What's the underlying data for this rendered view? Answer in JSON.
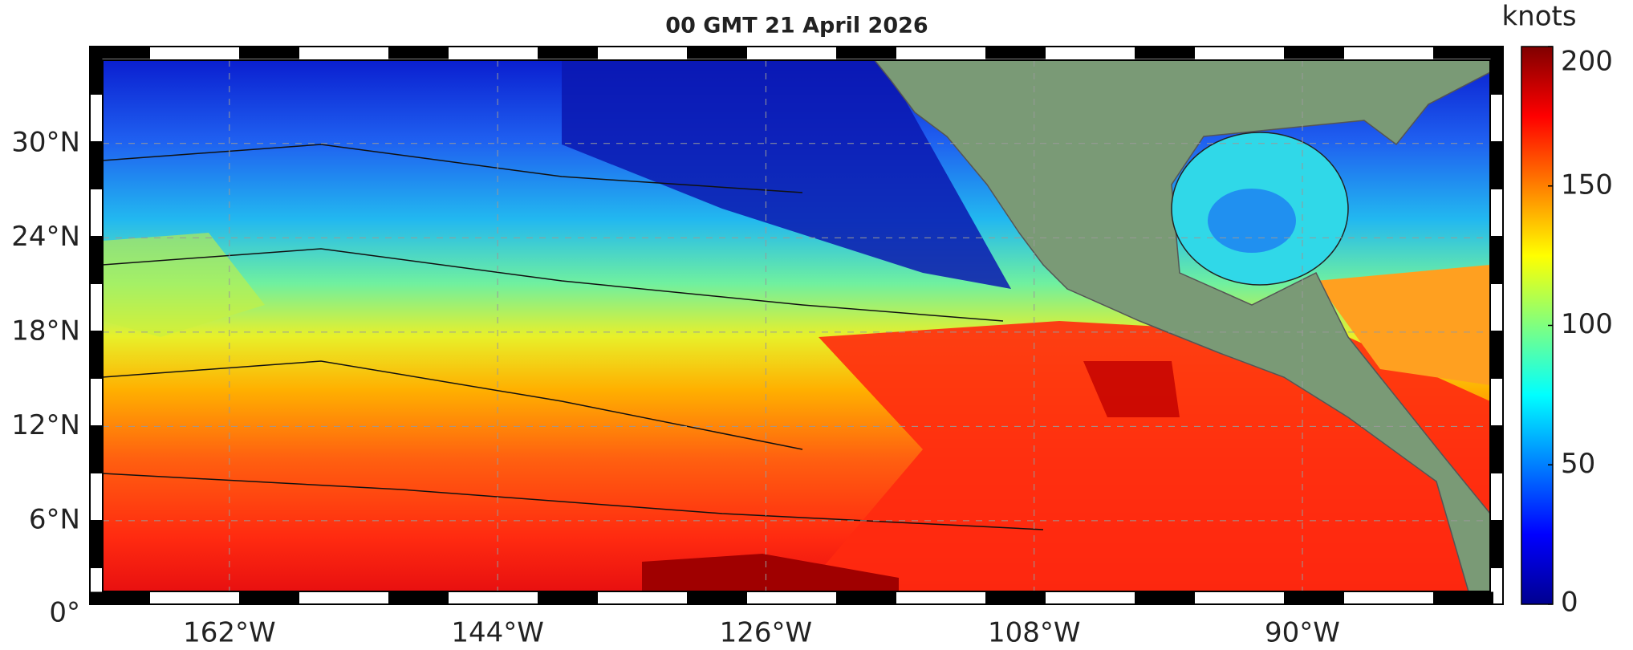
{
  "title": "00 GMT 21 April 2026",
  "map": {
    "xlim": [
      -170.5,
      -77.4
    ],
    "ylim": [
      1.5,
      35.3
    ],
    "xticks": [
      {
        "value": -162,
        "label": "162°W"
      },
      {
        "value": -144,
        "label": "144°W"
      },
      {
        "value": -126,
        "label": "126°W"
      },
      {
        "value": -108,
        "label": "108°W"
      },
      {
        "value": -90,
        "label": "90°W"
      }
    ],
    "yticks": [
      {
        "value": 0,
        "label": "0°"
      },
      {
        "value": 6,
        "label": "6°N"
      },
      {
        "value": 12,
        "label": "12°N"
      },
      {
        "value": 18,
        "label": "18°N"
      },
      {
        "value": 24,
        "label": "24°N"
      },
      {
        "value": 30,
        "label": "30°N"
      }
    ],
    "grid": true
  },
  "colorbar": {
    "label": "knots",
    "lim": [
      0,
      200
    ],
    "ticks": [
      0,
      50,
      100,
      150,
      200
    ]
  }
}
